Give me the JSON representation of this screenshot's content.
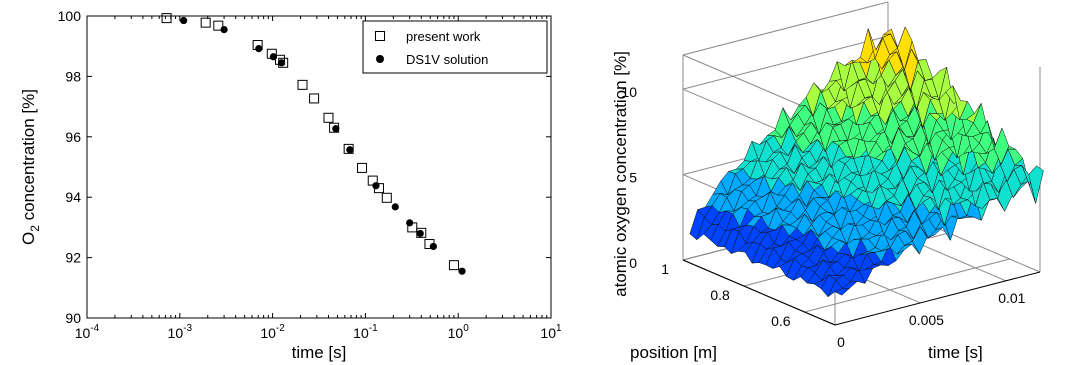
{
  "chart_data": [
    {
      "type": "scatter",
      "xscale": "log",
      "xlim": [
        0.0001,
        10
      ],
      "ylim": [
        90,
        100
      ],
      "xlabel": "time [s]",
      "ylabel_main": "O",
      "ylabel_sub": "2",
      "ylabel_rest": " concentration [%]",
      "xticks": [
        {
          "value": 0.0001,
          "base": "10",
          "exp": "-4"
        },
        {
          "value": 0.001,
          "base": "10",
          "exp": "-3"
        },
        {
          "value": 0.01,
          "base": "10",
          "exp": "-2"
        },
        {
          "value": 0.1,
          "base": "10",
          "exp": "-1"
        },
        {
          "value": 1,
          "base": "10",
          "exp": "0"
        },
        {
          "value": 10,
          "base": "10",
          "exp": "1"
        }
      ],
      "yticks": [
        "90",
        "92",
        "94",
        "96",
        "98",
        "100"
      ],
      "grid": false,
      "legend_position": "top-right",
      "series": [
        {
          "name": "present work",
          "marker": "open-square",
          "points": [
            [
              0.00072,
              99.93
            ],
            [
              0.0019,
              99.78
            ],
            [
              0.0026,
              99.68
            ],
            [
              0.0069,
              99.04
            ],
            [
              0.0098,
              98.75
            ],
            [
              0.012,
              98.55
            ],
            [
              0.013,
              98.45
            ],
            [
              0.021,
              97.72
            ],
            [
              0.028,
              97.27
            ],
            [
              0.04,
              96.63
            ],
            [
              0.046,
              96.3
            ],
            [
              0.066,
              95.6
            ],
            [
              0.092,
              94.97
            ],
            [
              0.12,
              94.55
            ],
            [
              0.14,
              94.3
            ],
            [
              0.17,
              93.98
            ],
            [
              0.32,
              93.0
            ],
            [
              0.4,
              92.82
            ],
            [
              0.49,
              92.45
            ],
            [
              0.9,
              91.75
            ]
          ]
        },
        {
          "name": "DS1V solution",
          "marker": "filled-circle",
          "points": [
            [
              0.0011,
              99.85
            ],
            [
              0.003,
              99.55
            ],
            [
              0.0071,
              98.92
            ],
            [
              0.0102,
              98.65
            ],
            [
              0.0125,
              98.45
            ],
            [
              0.048,
              96.27
            ],
            [
              0.068,
              95.57
            ],
            [
              0.13,
              94.38
            ],
            [
              0.21,
              93.68
            ],
            [
              0.3,
              93.15
            ],
            [
              0.39,
              92.8
            ],
            [
              0.54,
              92.37
            ],
            [
              1.1,
              91.55
            ]
          ]
        }
      ]
    },
    {
      "type": "surface3d",
      "zlabel": "atomic oxygen concentration [%]",
      "xlabel": "time [s]",
      "ylabel": "position [m]",
      "zticks": [
        "0",
        "5",
        "10"
      ],
      "time_ticks": [
        "0",
        "0.005",
        "0.01"
      ],
      "position_ticks": [
        "1",
        "0.8",
        "0.6"
      ],
      "time_range": [
        0,
        0.012
      ],
      "position_range": [
        0.5,
        1.0
      ],
      "z_range": [
        0,
        12
      ],
      "colormap": [
        "#0000a8",
        "#0044ff",
        "#00aaff",
        "#10e0d0",
        "#40ff80",
        "#a8ff40",
        "#ffe000",
        "#ff8000",
        "#e80000"
      ]
    }
  ]
}
